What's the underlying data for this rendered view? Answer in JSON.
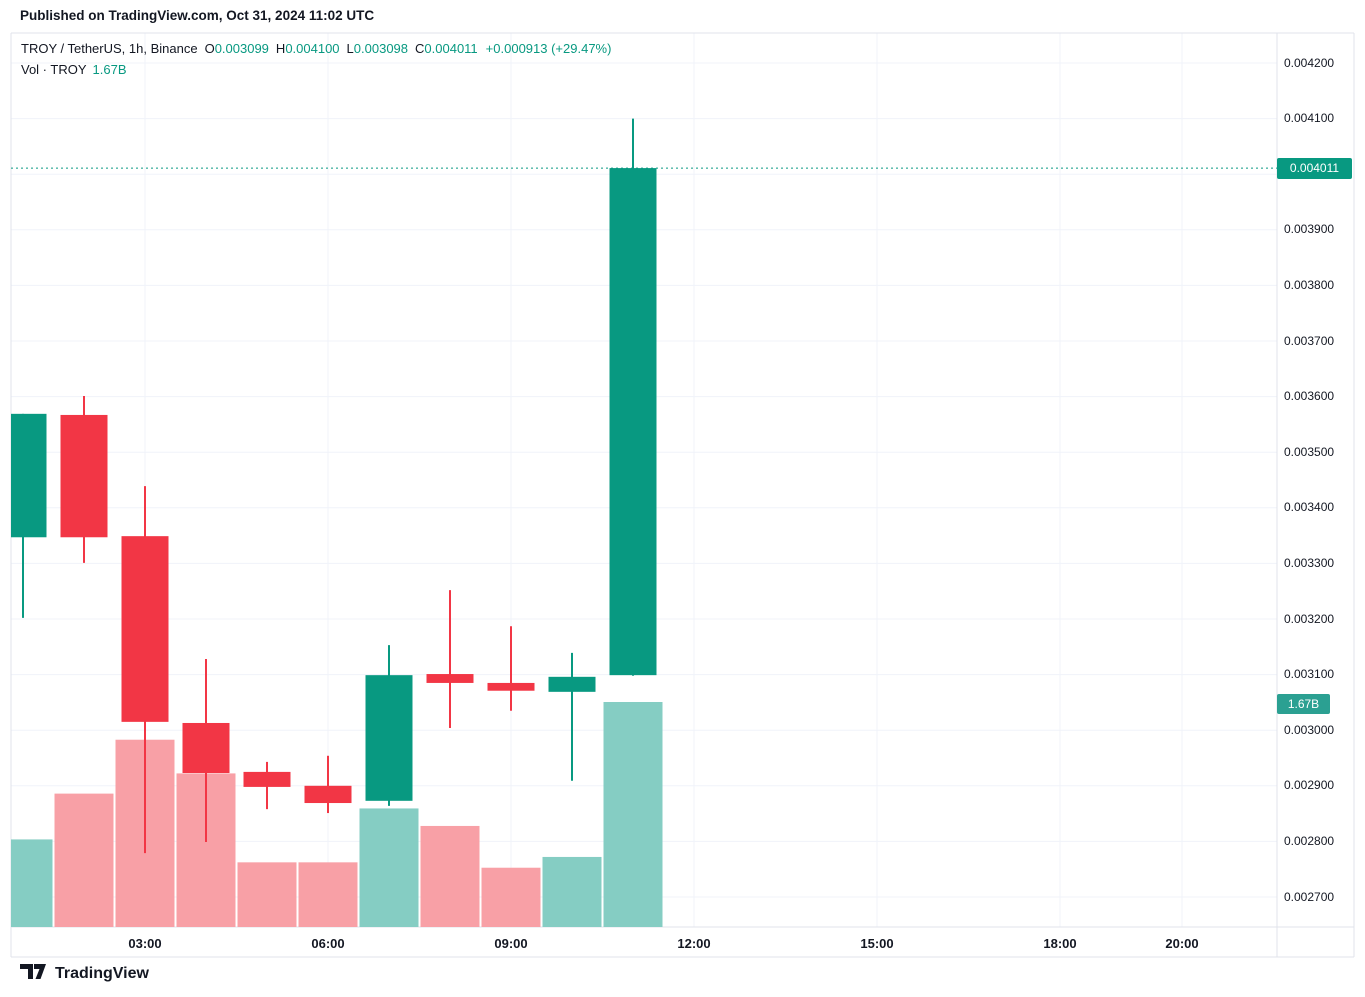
{
  "published_line": "Published on TradingView.com, Oct 31, 2024 11:02 UTC",
  "watermark": {
    "brand": "TradingView"
  },
  "legend": {
    "symbol": "TROY / TetherUS, 1h, Binance",
    "ohlc": [
      {
        "k": "O",
        "v": "0.003099"
      },
      {
        "k": "H",
        "v": "0.004100"
      },
      {
        "k": "L",
        "v": "0.003098"
      },
      {
        "k": "C",
        "v": "0.004011"
      }
    ],
    "change": "+0.000913 (+29.47%)",
    "vol_label": "Vol · TROY",
    "vol_value": "1.67B"
  },
  "price_tag": "0.004011",
  "vol_tag": "1.67B",
  "colors": {
    "up": "#089981",
    "down": "#f23645",
    "vol_up": "#85cdc3",
    "vol_down": "#f8a0a6",
    "accent": "#089981",
    "text": "#131722",
    "grid": "#f0f3fa",
    "frame": "#e0e3eb",
    "tag_bg": "#089981",
    "vol_tag_bg": "#2ba092"
  },
  "chart_data": {
    "type": "candlestick+volume",
    "title": "TROY / TetherUS, 1h, Binance",
    "pair": "TROY / TetherUS",
    "interval": "1h",
    "exchange": "Binance",
    "last_close": 0.004011,
    "change_abs": "+0.000913",
    "change_pct": "+29.47%",
    "total_volume_label": "1.67B",
    "ylim": [
      0.002646,
      0.004254
    ],
    "grid": true,
    "price_axis_ticks": [
      "0.004200",
      "0.004100",
      "0.004000",
      "0.003900",
      "0.003800",
      "0.003700",
      "0.003600",
      "0.003500",
      "0.003400",
      "0.003300",
      "0.003200",
      "0.003100",
      "0.003000",
      "0.002900",
      "0.002800",
      "0.002700"
    ],
    "time_axis_ticks": [
      {
        "label": "03:00",
        "slot": 2
      },
      {
        "label": "06:00",
        "slot": 5
      },
      {
        "label": "09:00",
        "slot": 8
      },
      {
        "label": "12:00",
        "slot": 11
      },
      {
        "label": "15:00",
        "slot": 14
      },
      {
        "label": "18:00",
        "slot": 17
      },
      {
        "label": "20:00",
        "slot": 19
      }
    ],
    "candles": [
      {
        "time": "01:00",
        "open": 0.003347,
        "high": 0.003569,
        "low": 0.003202,
        "close": 0.003569,
        "volume_b": 0.65
      },
      {
        "time": "02:00",
        "open": 0.003567,
        "high": 0.003601,
        "low": 0.003301,
        "close": 0.003347,
        "volume_b": 0.99
      },
      {
        "time": "03:00",
        "open": 0.003349,
        "high": 0.003439,
        "low": 0.002779,
        "close": 0.003015,
        "volume_b": 1.39
      },
      {
        "time": "04:00",
        "open": 0.003013,
        "high": 0.003128,
        "low": 0.002799,
        "close": 0.002923,
        "volume_b": 1.14
      },
      {
        "time": "05:00",
        "open": 0.002925,
        "high": 0.002943,
        "low": 0.002858,
        "close": 0.002898,
        "volume_b": 0.48
      },
      {
        "time": "06:00",
        "open": 0.0029,
        "high": 0.002954,
        "low": 0.002851,
        "close": 0.002869,
        "volume_b": 0.48
      },
      {
        "time": "07:00",
        "open": 0.002873,
        "high": 0.003153,
        "low": 0.002864,
        "close": 0.003099,
        "volume_b": 0.88
      },
      {
        "time": "08:00",
        "open": 0.003101,
        "high": 0.003252,
        "low": 0.003004,
        "close": 0.003085,
        "volume_b": 0.75
      },
      {
        "time": "09:00",
        "open": 0.003085,
        "high": 0.003187,
        "low": 0.003035,
        "close": 0.003071,
        "volume_b": 0.44
      },
      {
        "time": "10:00",
        "open": 0.003069,
        "high": 0.003139,
        "low": 0.002909,
        "close": 0.003096,
        "volume_b": 0.52
      },
      {
        "time": "11:00",
        "open": 0.003099,
        "high": 0.0041,
        "low": 0.003098,
        "close": 0.004011,
        "volume_b": 1.67
      }
    ]
  }
}
